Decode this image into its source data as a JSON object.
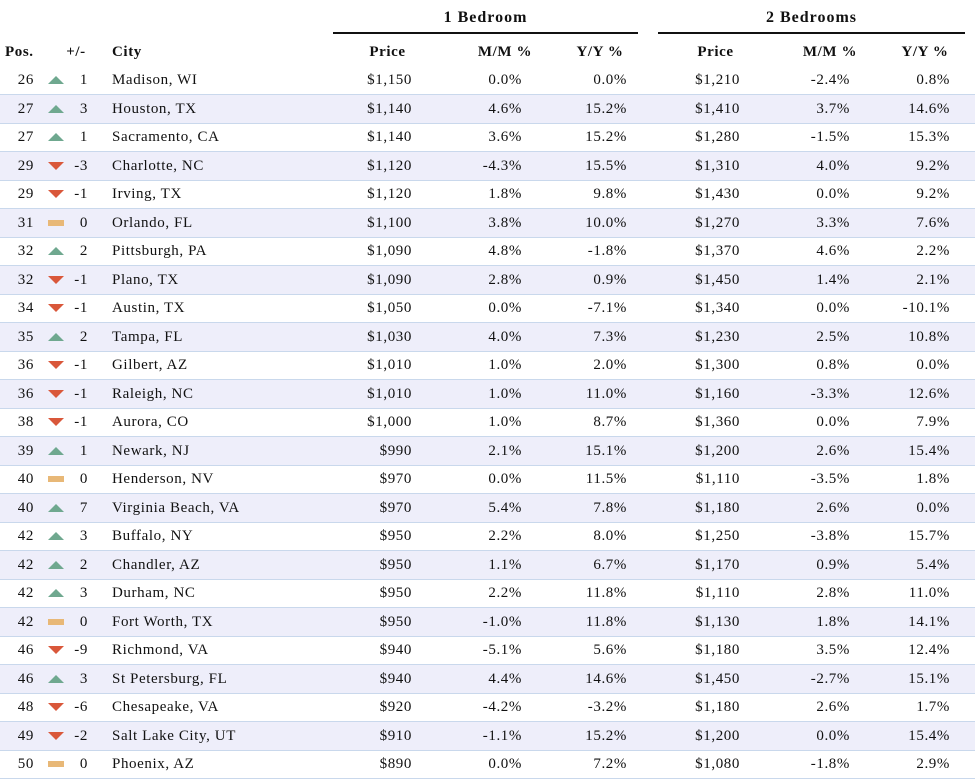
{
  "table": {
    "groups": [
      "1 Bedroom",
      "2 Bedrooms"
    ],
    "columns": [
      "Pos.",
      "+/-",
      "City",
      "Price",
      "M/M %",
      "Y/Y %",
      "Price",
      "M/M %",
      "Y/Y %"
    ],
    "rows": [
      [
        "26",
        "1",
        "Madison, WI",
        "$1,150",
        "0.0%",
        "0.0%",
        "$1,210",
        "-2.4%",
        "0.8%"
      ],
      [
        "27",
        "3",
        "Houston, TX",
        "$1,140",
        "4.6%",
        "15.2%",
        "$1,410",
        "3.7%",
        "14.6%"
      ],
      [
        "27",
        "1",
        "Sacramento, CA",
        "$1,140",
        "3.6%",
        "15.2%",
        "$1,280",
        "-1.5%",
        "15.3%"
      ],
      [
        "29",
        "-3",
        "Charlotte, NC",
        "$1,120",
        "-4.3%",
        "15.5%",
        "$1,310",
        "4.0%",
        "9.2%"
      ],
      [
        "29",
        "-1",
        "Irving, TX",
        "$1,120",
        "1.8%",
        "9.8%",
        "$1,430",
        "0.0%",
        "9.2%"
      ],
      [
        "31",
        "0",
        "Orlando, FL",
        "$1,100",
        "3.8%",
        "10.0%",
        "$1,270",
        "3.3%",
        "7.6%"
      ],
      [
        "32",
        "2",
        "Pittsburgh, PA",
        "$1,090",
        "4.8%",
        "-1.8%",
        "$1,370",
        "4.6%",
        "2.2%"
      ],
      [
        "32",
        "-1",
        "Plano, TX",
        "$1,090",
        "2.8%",
        "0.9%",
        "$1,450",
        "1.4%",
        "2.1%"
      ],
      [
        "34",
        "-1",
        "Austin, TX",
        "$1,050",
        "0.0%",
        "-7.1%",
        "$1,340",
        "0.0%",
        "-10.1%"
      ],
      [
        "35",
        "2",
        "Tampa, FL",
        "$1,030",
        "4.0%",
        "7.3%",
        "$1,230",
        "2.5%",
        "10.8%"
      ],
      [
        "36",
        "-1",
        "Gilbert, AZ",
        "$1,010",
        "1.0%",
        "2.0%",
        "$1,300",
        "0.8%",
        "0.0%"
      ],
      [
        "36",
        "-1",
        "Raleigh, NC",
        "$1,010",
        "1.0%",
        "11.0%",
        "$1,160",
        "-3.3%",
        "12.6%"
      ],
      [
        "38",
        "-1",
        "Aurora, CO",
        "$1,000",
        "1.0%",
        "8.7%",
        "$1,360",
        "0.0%",
        "7.9%"
      ],
      [
        "39",
        "1",
        "Newark, NJ",
        "$990",
        "2.1%",
        "15.1%",
        "$1,200",
        "2.6%",
        "15.4%"
      ],
      [
        "40",
        "0",
        "Henderson, NV",
        "$970",
        "0.0%",
        "11.5%",
        "$1,110",
        "-3.5%",
        "1.8%"
      ],
      [
        "40",
        "7",
        "Virginia Beach, VA",
        "$970",
        "5.4%",
        "7.8%",
        "$1,180",
        "2.6%",
        "0.0%"
      ],
      [
        "42",
        "3",
        "Buffalo, NY",
        "$950",
        "2.2%",
        "8.0%",
        "$1,250",
        "-3.8%",
        "15.7%"
      ],
      [
        "42",
        "2",
        "Chandler, AZ",
        "$950",
        "1.1%",
        "6.7%",
        "$1,170",
        "0.9%",
        "5.4%"
      ],
      [
        "42",
        "3",
        "Durham, NC",
        "$950",
        "2.2%",
        "11.8%",
        "$1,110",
        "2.8%",
        "11.0%"
      ],
      [
        "42",
        "0",
        "Fort Worth, TX",
        "$950",
        "-1.0%",
        "11.8%",
        "$1,130",
        "1.8%",
        "14.1%"
      ],
      [
        "46",
        "-9",
        "Richmond, VA",
        "$940",
        "-5.1%",
        "5.6%",
        "$1,180",
        "3.5%",
        "12.4%"
      ],
      [
        "46",
        "3",
        "St Petersburg, FL",
        "$940",
        "4.4%",
        "14.6%",
        "$1,450",
        "-2.7%",
        "15.1%"
      ],
      [
        "48",
        "-6",
        "Chesapeake, VA",
        "$920",
        "-4.2%",
        "-3.2%",
        "$1,180",
        "2.6%",
        "1.7%"
      ],
      [
        "49",
        "-2",
        "Salt Lake City, UT",
        "$910",
        "-1.1%",
        "15.2%",
        "$1,200",
        "0.0%",
        "15.4%"
      ],
      [
        "50",
        "0",
        "Phoenix, AZ",
        "$890",
        "0.0%",
        "7.2%",
        "$1,080",
        "-1.8%",
        "2.9%"
      ]
    ]
  }
}
